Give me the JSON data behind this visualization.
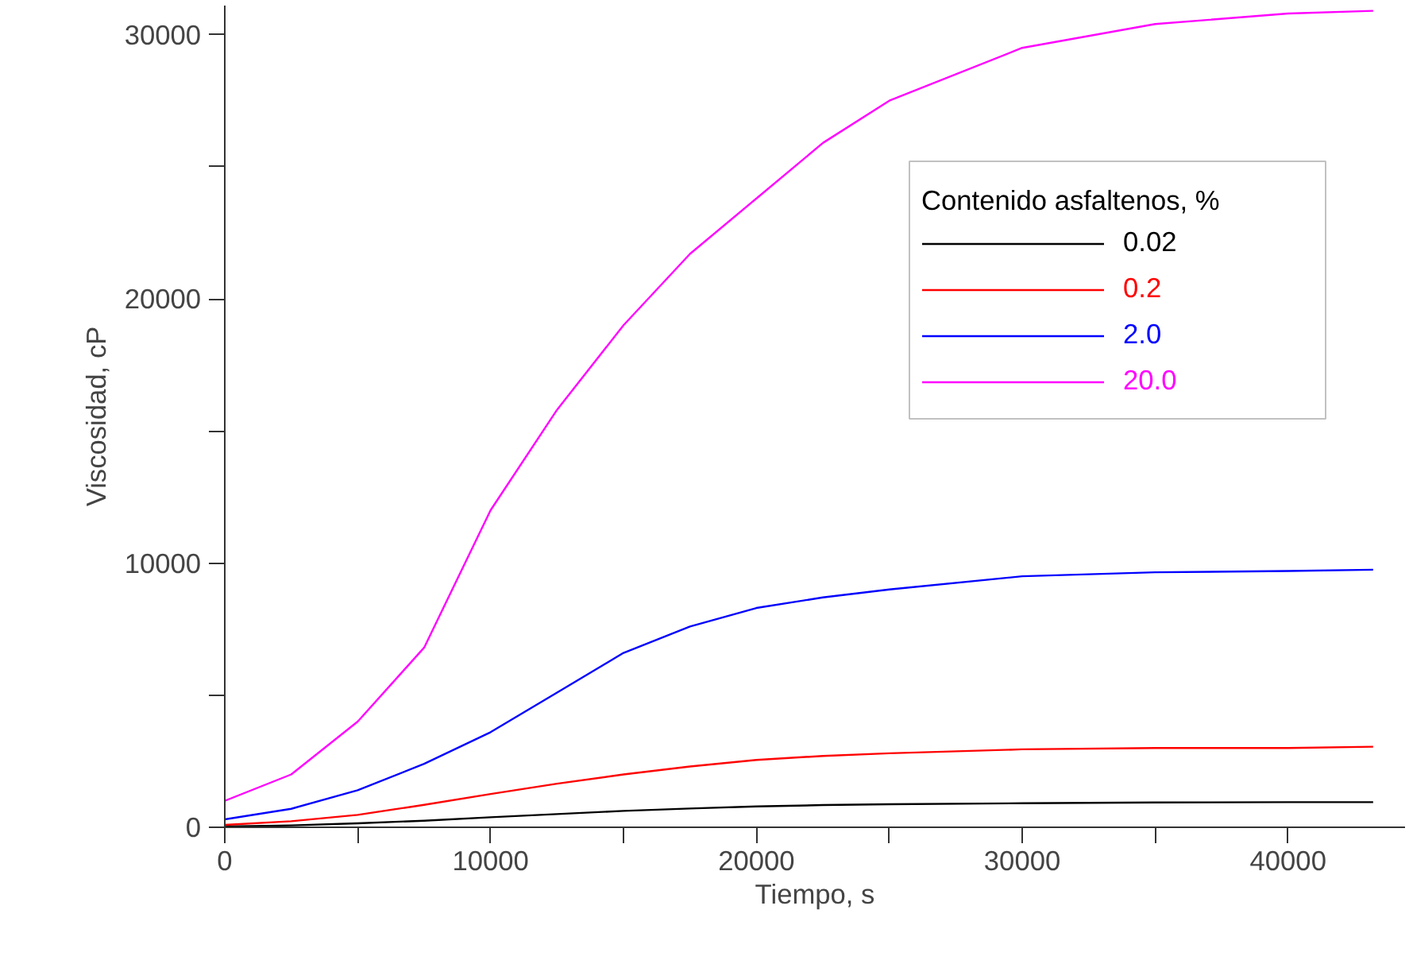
{
  "chart_data": {
    "type": "line",
    "xlabel": "Tiempo, s",
    "ylabel": "Viscosidad, cP",
    "legend_title": "Contenido asfaltenos, %",
    "x": [
      0,
      2500,
      5000,
      7500,
      10000,
      12500,
      15000,
      17500,
      20000,
      22500,
      25000,
      30000,
      35000,
      40000,
      43200
    ],
    "series": [
      {
        "name": "0.02",
        "color": "#000000",
        "values": [
          30,
          70,
          150,
          250,
          380,
          500,
          620,
          710,
          790,
          840,
          870,
          910,
          940,
          950,
          950
        ]
      },
      {
        "name": "0.2",
        "color": "#ff0000",
        "values": [
          90,
          230,
          470,
          850,
          1260,
          1650,
          2000,
          2300,
          2550,
          2700,
          2800,
          2950,
          3000,
          3000,
          3050
        ]
      },
      {
        "name": "2.0",
        "color": "#0000ff",
        "values": [
          300,
          700,
          1400,
          2400,
          3600,
          5100,
          6600,
          7600,
          8300,
          8700,
          9000,
          9500,
          9650,
          9700,
          9750
        ]
      },
      {
        "name": "20.0",
        "color": "#ff00ff",
        "values": [
          1000,
          2000,
          4000,
          6800,
          12000,
          15800,
          19000,
          21700,
          23800,
          25900,
          27500,
          29500,
          30400,
          30800,
          30900
        ]
      }
    ],
    "xlim": [
      0,
      44400
    ],
    "ylim": [
      0,
      31100
    ],
    "xticks": [
      0,
      {
        "value": 5000,
        "label": null
      },
      10000,
      {
        "value": 15000,
        "label": null
      },
      20000,
      {
        "value": 25000,
        "label": null
      },
      30000,
      {
        "value": 35000,
        "label": null
      },
      40000
    ],
    "yticks": [
      0,
      {
        "value": 5000,
        "label": null
      },
      10000,
      {
        "value": 15000,
        "label": null
      },
      20000,
      {
        "value": 25000,
        "label": null
      },
      30000
    ],
    "grid": false,
    "legend": "top right",
    "line_style": "solid",
    "marker": "none"
  }
}
